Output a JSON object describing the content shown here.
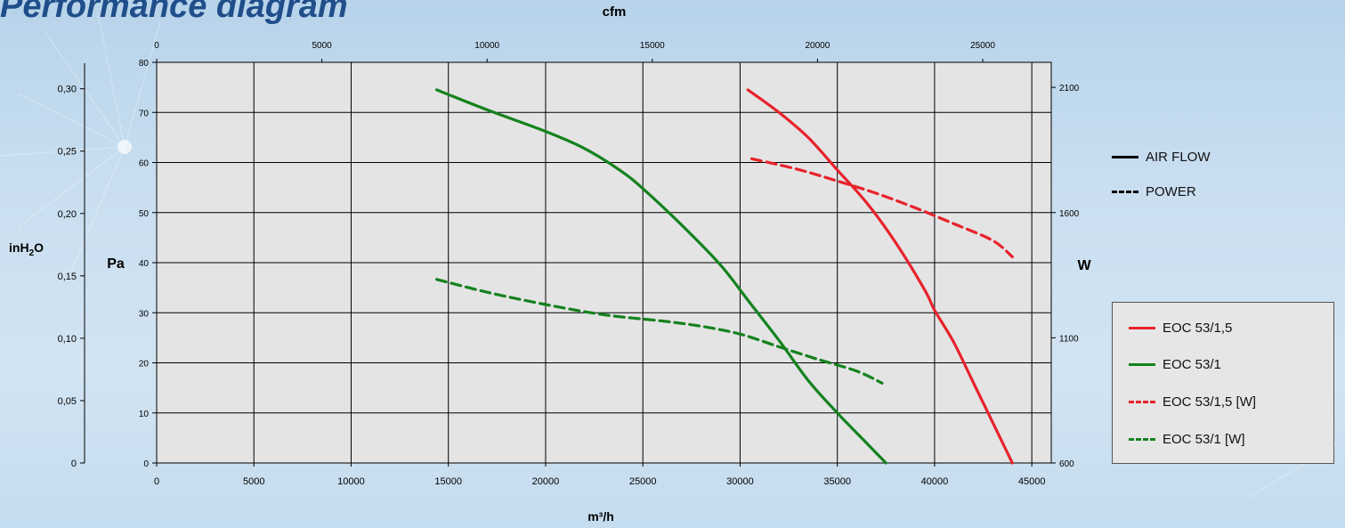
{
  "title": "Performance diagram",
  "colors": {
    "plot_bg": "#e4e4e4",
    "red": "#e8232c",
    "green": "#14821e",
    "axis": "#000000",
    "title": "#1f4e8a"
  },
  "line_style_legend": [
    {
      "label": "AIR FLOW",
      "style": "solid"
    },
    {
      "label": "POWER",
      "style": "dashed"
    }
  ],
  "chart_data": {
    "type": "line",
    "title": "",
    "x_primary": {
      "label": "m³/h",
      "range": [
        0,
        46000
      ],
      "ticks": [
        0,
        5000,
        10000,
        15000,
        20000,
        25000,
        30000,
        35000,
        40000,
        45000
      ],
      "tick_labels": [
        "0",
        "5000",
        "10000",
        "15000",
        "20000",
        "25000",
        "30000",
        "35000",
        "40000",
        "45000"
      ]
    },
    "x_secondary": {
      "label": "cfm",
      "ticks": [
        0,
        5000,
        10000,
        15000,
        20000,
        25000
      ],
      "tick_labels": [
        "0",
        "5000",
        "10000",
        "15000",
        "20000",
        "25000"
      ]
    },
    "y_pa": {
      "label": "Pa",
      "range": [
        0,
        80
      ],
      "ticks": [
        0,
        10,
        20,
        30,
        40,
        50,
        60,
        70,
        80
      ],
      "tick_labels": [
        "0",
        "10",
        "20",
        "30",
        "40",
        "50",
        "60",
        "70",
        "80"
      ]
    },
    "y_inh2o": {
      "label": "inH2O",
      "ticks": [
        0,
        0.05,
        0.1,
        0.15,
        0.2,
        0.25,
        0.3
      ],
      "tick_labels": [
        "0",
        "0,05",
        "0,10",
        "0,15",
        "0,20",
        "0,25",
        "0,30"
      ]
    },
    "y_w": {
      "label": "W",
      "range": [
        600,
        2200
      ],
      "ticks": [
        600,
        1100,
        1600,
        2100
      ],
      "tick_labels": [
        "600",
        "1100",
        "1600",
        "2100"
      ]
    },
    "grid": true,
    "legend_position": "right",
    "series": [
      {
        "name": "EOC 53/1,5",
        "color": "#e8232c",
        "style": "solid",
        "axis": "Pa",
        "points": [
          [
            30400,
            74.5
          ],
          [
            32000,
            70
          ],
          [
            33500,
            65
          ],
          [
            35000,
            58.5
          ],
          [
            36500,
            52
          ],
          [
            38000,
            44
          ],
          [
            39500,
            34.5
          ],
          [
            40000,
            30.5
          ],
          [
            41000,
            24
          ],
          [
            42000,
            16
          ],
          [
            43000,
            8
          ],
          [
            44000,
            0
          ]
        ]
      },
      {
        "name": "EOC 53/1",
        "color": "#14821e",
        "style": "solid",
        "axis": "Pa",
        "points": [
          [
            14400,
            74.5
          ],
          [
            17000,
            70.5
          ],
          [
            20000,
            66.2
          ],
          [
            22000,
            62.8
          ],
          [
            23800,
            58.5
          ],
          [
            25000,
            54.8
          ],
          [
            27000,
            47.5
          ],
          [
            29000,
            39.5
          ],
          [
            30500,
            32
          ],
          [
            32000,
            24.5
          ],
          [
            33500,
            16.5
          ],
          [
            35000,
            10
          ],
          [
            36500,
            4
          ],
          [
            37500,
            0
          ]
        ]
      },
      {
        "name": "EOC 53/1,5 [W]",
        "color": "#e8232c",
        "style": "dashed",
        "axis": "W",
        "points": [
          [
            30600,
            1815
          ],
          [
            33000,
            1772
          ],
          [
            35000,
            1726
          ],
          [
            37000,
            1677
          ],
          [
            39000,
            1619
          ],
          [
            41000,
            1555
          ],
          [
            43000,
            1488
          ],
          [
            44000,
            1423
          ]
        ]
      },
      {
        "name": "EOC 53/1 [W]",
        "color": "#14821e",
        "style": "dashed",
        "axis": "W",
        "points": [
          [
            14400,
            1333
          ],
          [
            17000,
            1282
          ],
          [
            20000,
            1233
          ],
          [
            23000,
            1192
          ],
          [
            26000,
            1167
          ],
          [
            28000,
            1146
          ],
          [
            30000,
            1115
          ],
          [
            32000,
            1064
          ],
          [
            34000,
            1014
          ],
          [
            36000,
            967
          ],
          [
            37300,
            919
          ]
        ]
      }
    ]
  }
}
